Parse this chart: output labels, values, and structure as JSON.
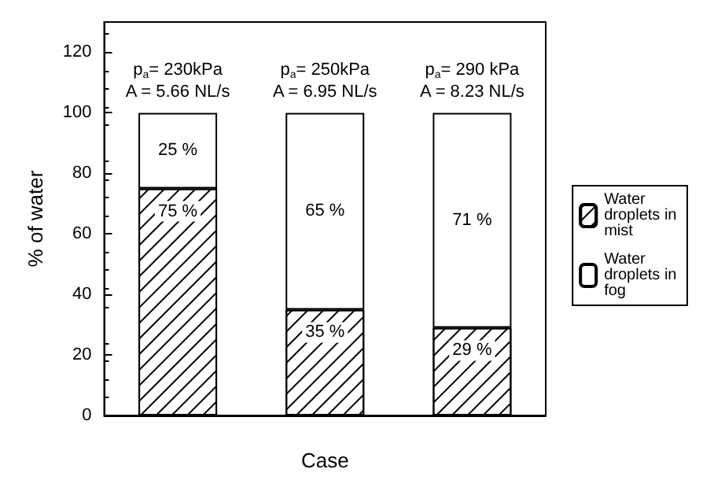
{
  "chart_data": {
    "type": "bar",
    "stacked": true,
    "xlabel": "Case",
    "ylabel": "% of water",
    "categories": [
      null,
      null,
      null
    ],
    "series": [
      {
        "name": "Water droplets in mist",
        "color": "#ffffff",
        "values": [
          75,
          35,
          29
        ],
        "value_labels": [
          "75 %",
          "35 %",
          "29 %"
        ]
      },
      {
        "name": "Water droplets in fog",
        "color": "#ffffff",
        "values": [
          25,
          65,
          71
        ],
        "value_labels": [
          "25 %",
          "65 %",
          "71 %"
        ]
      }
    ],
    "annotations": [
      "p$_{a}$= 230kPa\nA = 5.66 NL/s",
      "p$_{a}$= 250kPa\nA = 6.95 NL/s",
      "p$_{a}$= 290 kPa\nA = 8.23 NL/s"
    ],
    "ylim": [
      0,
      130
    ],
    "yticks": [
      0,
      20,
      40,
      60,
      80,
      100,
      120
    ],
    "grid": false,
    "legend": "right"
  }
}
